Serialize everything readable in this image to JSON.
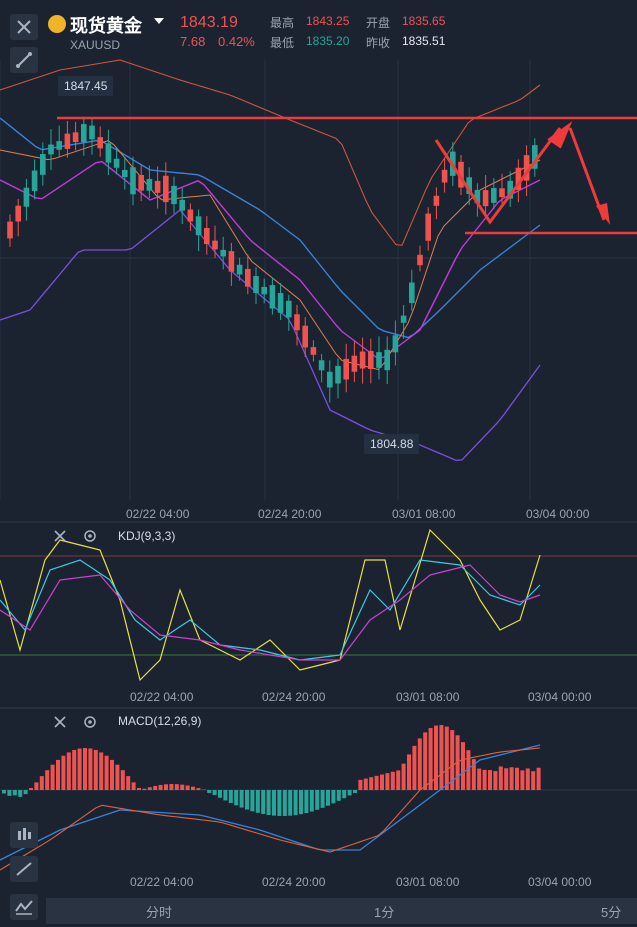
{
  "header": {
    "title": "现货黄金",
    "symbol": "XAUUSD",
    "last_price": "1843.19",
    "change": "7.68",
    "change_pct": "0.42%",
    "high_label": "最高",
    "high": "1843.25",
    "open_label": "开盘",
    "open": "1835.65",
    "low_label": "最低",
    "low": "1835.20",
    "prev_close_label": "昨收",
    "prev_close": "1835.51"
  },
  "main_chart": {
    "max_label": "1847.45",
    "min_label": "1804.88",
    "x_ticks": [
      "02/22 04:00",
      "02/24 20:00",
      "03/01 08:00",
      "03/04 00:00"
    ]
  },
  "kdj": {
    "name": "KDJ(9,3,3)",
    "x_ticks": [
      "02/22 04:00",
      "02/24 20:00",
      "03/01 08:00",
      "03/04 00:00"
    ]
  },
  "macd": {
    "name": "MACD(12,26,9)",
    "x_ticks": [
      "02/22 04:00",
      "02/24 20:00",
      "03/01 08:00",
      "03/04 00:00"
    ]
  },
  "tabs": [
    "分时",
    "1分",
    "5分"
  ],
  "colors": {
    "up": "#ef5350",
    "down": "#26a69a",
    "bg": "#1b2331"
  },
  "icons": {
    "close": "close-icon",
    "draw": "draw-tool-icon",
    "settings": "gear-icon",
    "candle": "candlestick-icon",
    "line": "line-tool-icon",
    "wave": "indicator-icon"
  }
}
